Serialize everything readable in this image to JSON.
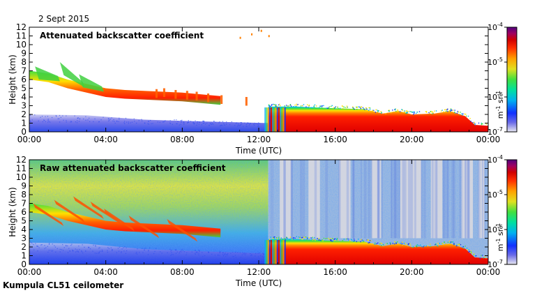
{
  "figure": {
    "date": "2 Sept 2015",
    "footer": "Kumpula CL51 ceilometer"
  },
  "colorbar": {
    "unit_text": "m",
    "unit_sup1": "-1",
    "unit_mid": " sr",
    "unit_sup2": "-1",
    "ticks": [
      {
        "base": "10",
        "exp": "-4",
        "value": 0.0001
      },
      {
        "base": "10",
        "exp": "-5",
        "value": 1e-05
      },
      {
        "base": "10",
        "exp": "-6",
        "value": 1e-06
      },
      {
        "base": "10",
        "exp": "-7",
        "value": 1e-07
      }
    ],
    "colors": [
      "#e8e8f0",
      "#6a6ae8",
      "#1030ff",
      "#00b0f0",
      "#00e0a0",
      "#40e040",
      "#e0e020",
      "#ffa000",
      "#ff3000",
      "#d00000",
      "#a00060",
      "#500080"
    ]
  },
  "chart_data": [
    {
      "type": "heatmap",
      "title": "Attenuated backscatter coefficient",
      "xlabel": "Time (UTC)",
      "ylabel": "Height (km)",
      "xlim": [
        "00:00",
        "24:00"
      ],
      "ylim": [
        0,
        12
      ],
      "xticks": [
        "00:00",
        "04:00",
        "08:00",
        "12:00",
        "16:00",
        "20:00",
        "00:00"
      ],
      "yticks": [
        0,
        1,
        2,
        3,
        4,
        5,
        6,
        7,
        8,
        9,
        10,
        11,
        12
      ],
      "color_scale": "log",
      "zlim": [
        1e-07,
        0.0001
      ],
      "features": [
        {
          "name": "boundary layer",
          "hours": [
            0,
            12.5
          ],
          "height_km": [
            0,
            2
          ]
        },
        {
          "name": "descending aerosol layer",
          "hours": [
            0,
            10
          ],
          "height_km_start": 6.5,
          "height_km_end": 4
        },
        {
          "name": "low cloud",
          "hours": [
            12.5,
            24
          ],
          "height_km": [
            0,
            3
          ]
        }
      ]
    },
    {
      "type": "heatmap",
      "title": "Raw attenuated backscatter coefficient",
      "xlabel": "Time (UTC)",
      "ylabel": "Height (km)",
      "xlim": [
        "00:00",
        "24:00"
      ],
      "ylim": [
        0,
        12
      ],
      "xticks": [
        "00:00",
        "04:00",
        "08:00",
        "12:00",
        "16:00",
        "20:00",
        "00:00"
      ],
      "yticks": [
        0,
        1,
        2,
        3,
        4,
        5,
        6,
        7,
        8,
        9,
        10,
        11,
        12
      ],
      "color_scale": "log",
      "zlim": [
        1e-07,
        0.0001
      ],
      "features": [
        {
          "name": "noise background",
          "hours": [
            0,
            24
          ],
          "height_km": [
            0,
            12
          ]
        },
        {
          "name": "descending aerosol layer",
          "hours": [
            0,
            10
          ],
          "height_km_start": 6.5,
          "height_km_end": 3.5
        },
        {
          "name": "low cloud",
          "hours": [
            12.5,
            24
          ],
          "height_km": [
            0,
            3
          ]
        }
      ]
    }
  ]
}
